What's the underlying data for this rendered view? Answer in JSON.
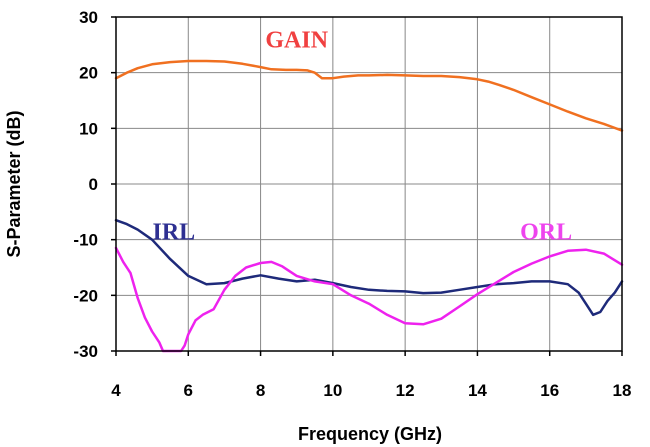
{
  "chart_data": {
    "type": "line",
    "title": "",
    "xlabel": "Frequency (GHz)",
    "ylabel": "S-Parameter (dB)",
    "xlim": [
      4,
      18
    ],
    "ylim": [
      -30,
      30
    ],
    "xticks": [
      4,
      6,
      8,
      10,
      12,
      14,
      16,
      18
    ],
    "yticks": [
      -30,
      -20,
      -10,
      0,
      10,
      20,
      30
    ],
    "xtick_labels": [
      "4",
      "6",
      "8",
      "10",
      "12",
      "14",
      "16",
      "18"
    ],
    "ytick_labels": [
      "-30",
      "-20",
      "-10",
      "0",
      "10",
      "20",
      "30"
    ],
    "grid": true,
    "annotations": [
      {
        "text": "GAIN",
        "x": 9.0,
        "y": 24.5,
        "color": "#f04040"
      },
      {
        "text": "IRL",
        "x": 5.6,
        "y": -10.0,
        "color": "#2e3092"
      },
      {
        "text": "ORL",
        "x": 15.9,
        "y": -10.0,
        "color": "#ee44ee"
      }
    ],
    "series": [
      {
        "name": "GAIN",
        "color": "#f07020",
        "x": [
          4.0,
          4.3,
          4.6,
          5.0,
          5.5,
          6.0,
          6.5,
          7.0,
          7.5,
          8.0,
          8.3,
          8.7,
          9.0,
          9.3,
          9.5,
          9.7,
          10.0,
          10.3,
          10.7,
          11.0,
          11.5,
          12.0,
          12.5,
          13.0,
          13.5,
          14.0,
          14.3,
          14.6,
          15.0,
          15.5,
          16.0,
          16.5,
          17.0,
          17.5,
          18.0
        ],
        "y": [
          19.0,
          20.0,
          20.8,
          21.5,
          21.9,
          22.1,
          22.1,
          22.0,
          21.6,
          21.0,
          20.6,
          20.5,
          20.5,
          20.4,
          20.0,
          19.0,
          19.0,
          19.3,
          19.5,
          19.5,
          19.6,
          19.5,
          19.4,
          19.4,
          19.2,
          18.8,
          18.4,
          17.8,
          16.9,
          15.6,
          14.3,
          13.0,
          11.8,
          10.8,
          9.6
        ]
      },
      {
        "name": "IRL",
        "color": "#1e2a7a",
        "x": [
          4.0,
          4.3,
          4.6,
          5.0,
          5.5,
          6.0,
          6.5,
          7.0,
          7.5,
          8.0,
          8.5,
          9.0,
          9.5,
          10.0,
          10.5,
          11.0,
          11.5,
          12.0,
          12.5,
          13.0,
          13.5,
          14.0,
          14.5,
          15.0,
          15.5,
          16.0,
          16.5,
          16.8,
          17.0,
          17.2,
          17.4,
          17.6,
          17.8,
          18.0
        ],
        "y": [
          -6.5,
          -7.2,
          -8.2,
          -10.0,
          -13.5,
          -16.5,
          -18.0,
          -17.8,
          -17.0,
          -16.4,
          -17.0,
          -17.5,
          -17.2,
          -17.8,
          -18.5,
          -19.0,
          -19.2,
          -19.3,
          -19.6,
          -19.5,
          -19.0,
          -18.5,
          -18.0,
          -17.8,
          -17.5,
          -17.5,
          -18.0,
          -19.5,
          -21.5,
          -23.5,
          -23.0,
          -21.0,
          -19.5,
          -17.5
        ]
      },
      {
        "name": "ORL",
        "color": "#ee22ee",
        "x": [
          4.0,
          4.2,
          4.4,
          4.6,
          4.8,
          5.0,
          5.2,
          5.3,
          5.8,
          5.9,
          6.0,
          6.2,
          6.4,
          6.7,
          7.0,
          7.3,
          7.6,
          8.0,
          8.3,
          8.6,
          9.0,
          9.5,
          10.0,
          10.5,
          11.0,
          11.5,
          12.0,
          12.5,
          13.0,
          13.5,
          14.0,
          14.5,
          15.0,
          15.5,
          16.0,
          16.5,
          17.0,
          17.5,
          18.0
        ],
        "y": [
          -11.5,
          -14.0,
          -16.0,
          -20.5,
          -24.0,
          -26.5,
          -28.5,
          -30.0,
          -30.0,
          -29.0,
          -27.0,
          -24.5,
          -23.5,
          -22.5,
          -19.0,
          -16.5,
          -15.0,
          -14.2,
          -14.0,
          -14.8,
          -16.5,
          -17.5,
          -18.0,
          -20.0,
          -21.5,
          -23.5,
          -25.0,
          -25.2,
          -24.2,
          -22.0,
          -19.8,
          -17.8,
          -15.8,
          -14.3,
          -13.0,
          -12.0,
          -11.8,
          -12.5,
          -14.5
        ]
      }
    ]
  }
}
